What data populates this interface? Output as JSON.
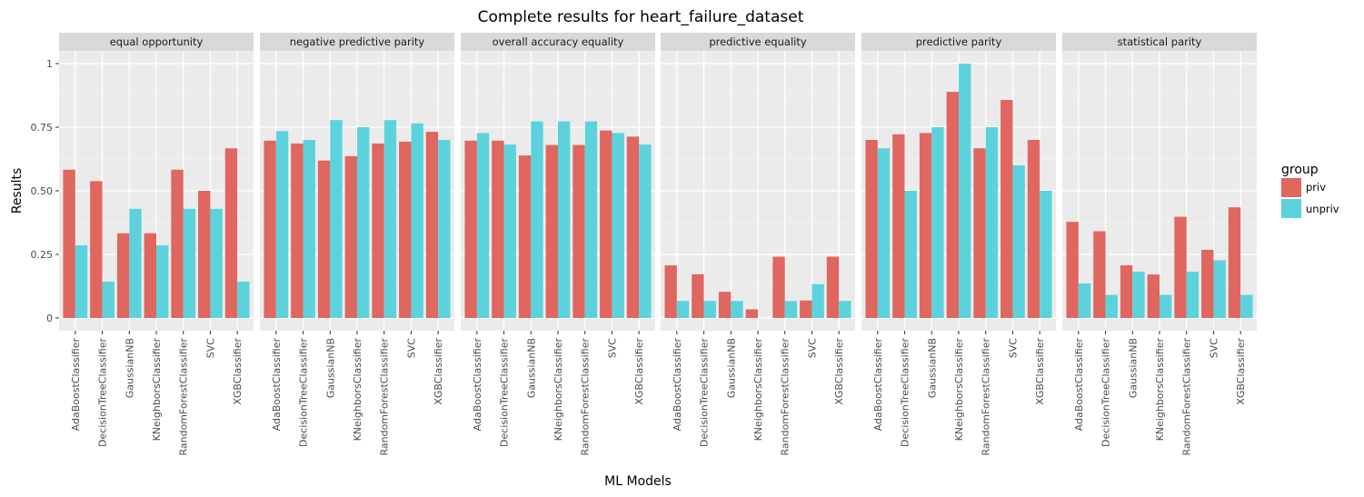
{
  "chart_data": {
    "type": "bar",
    "title": "Complete results for heart_failure_dataset",
    "xlabel": "ML Models",
    "ylabel": "Results",
    "ylim": [
      0,
      1.05
    ],
    "yticks": [
      0,
      0.25,
      0.5,
      0.75,
      1
    ],
    "ytick_labels": [
      "0",
      "0.25",
      "0.50",
      "0.75",
      "1"
    ],
    "grid": true,
    "legend": {
      "title": "group",
      "placement": "right"
    },
    "categories": [
      "AdaBoostClassifier",
      "DecisionTreeClassifier",
      "GaussianNB",
      "KNeighborsClassifier",
      "RandomForestClassifier",
      "SVC",
      "XGBClassifier"
    ],
    "series_style": [
      {
        "name": "priv",
        "color": "#E06660"
      },
      {
        "name": "unpriv",
        "color": "#5CD3DC"
      }
    ],
    "facets": [
      {
        "label": "equal opportunity",
        "series": [
          {
            "name": "priv",
            "values": [
              0.583,
              0.538,
              0.333,
              0.333,
              0.583,
              0.5,
              0.667
            ]
          },
          {
            "name": "unpriv",
            "values": [
              0.286,
              0.143,
              0.429,
              0.286,
              0.429,
              0.429,
              0.143
            ]
          }
        ]
      },
      {
        "label": "negative predictive parity",
        "series": [
          {
            "name": "priv",
            "values": [
              0.697,
              0.686,
              0.619,
              0.636,
              0.686,
              0.693,
              0.732
            ]
          },
          {
            "name": "unpriv",
            "values": [
              0.735,
              0.7,
              0.778,
              0.75,
              0.778,
              0.765,
              0.7
            ]
          }
        ]
      },
      {
        "label": "overall accuracy equality",
        "series": [
          {
            "name": "priv",
            "values": [
              0.697,
              0.697,
              0.639,
              0.68,
              0.68,
              0.737,
              0.713
            ]
          },
          {
            "name": "unpriv",
            "values": [
              0.727,
              0.682,
              0.773,
              0.773,
              0.773,
              0.727,
              0.682
            ]
          }
        ]
      },
      {
        "label": "predictive equality",
        "series": [
          {
            "name": "priv",
            "values": [
              0.207,
              0.172,
              0.103,
              0.034,
              0.241,
              0.069,
              0.241
            ]
          },
          {
            "name": "unpriv",
            "values": [
              0.067,
              0.067,
              0.067,
              0.0,
              0.067,
              0.133,
              0.067
            ]
          }
        ]
      },
      {
        "label": "predictive parity",
        "series": [
          {
            "name": "priv",
            "values": [
              0.7,
              0.722,
              0.727,
              0.889,
              0.667,
              0.857,
              0.7
            ]
          },
          {
            "name": "unpriv",
            "values": [
              0.667,
              0.5,
              0.75,
              1.0,
              0.75,
              0.6,
              0.5
            ]
          }
        ]
      },
      {
        "label": "statistical parity",
        "series": [
          {
            "name": "priv",
            "values": [
              0.378,
              0.341,
              0.207,
              0.171,
              0.398,
              0.268,
              0.435
            ]
          },
          {
            "name": "unpriv",
            "values": [
              0.136,
              0.091,
              0.182,
              0.091,
              0.182,
              0.227,
              0.091
            ]
          }
        ]
      }
    ]
  }
}
